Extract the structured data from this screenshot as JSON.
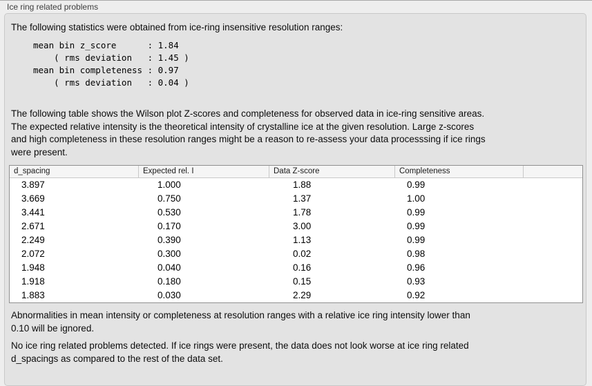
{
  "section": {
    "title": "Ice ring related problems",
    "intro": "The following statistics were obtained from ice-ring insensitive resolution ranges:",
    "stats_block": "mean bin z_score      : 1.84\n    ( rms deviation   : 1.45 )\nmean bin completeness : 0.97\n    ( rms deviation   : 0.04 )",
    "stats": {
      "mean_bin_z_score": "1.84",
      "z_score_rms_deviation": "1.45",
      "mean_bin_completeness": "0.97",
      "completeness_rms_deviation": "0.04"
    },
    "table_note": "The following table shows the Wilson plot Z-scores and completeness for observed data in ice-ring sensitive areas.\nThe expected relative intensity is the theoretical intensity of crystalline ice at the given resolution. Large z-scores\nand high completeness in these resolution ranges might be a reason to re-assess your data processsing if ice rings\nwere present.",
    "table": {
      "headers": [
        "d_spacing",
        "Expected rel. I",
        "Data Z-score",
        "Completeness",
        ""
      ],
      "rows": [
        [
          "3.897",
          "1.000",
          "1.88",
          "0.99"
        ],
        [
          "3.669",
          "0.750",
          "1.37",
          "1.00"
        ],
        [
          "3.441",
          "0.530",
          "1.78",
          "0.99"
        ],
        [
          "2.671",
          "0.170",
          "3.00",
          "0.99"
        ],
        [
          "2.249",
          "0.390",
          "1.13",
          "0.99"
        ],
        [
          "2.072",
          "0.300",
          "0.02",
          "0.98"
        ],
        [
          "1.948",
          "0.040",
          "0.16",
          "0.96"
        ],
        [
          "1.918",
          "0.180",
          "0.15",
          "0.93"
        ],
        [
          "1.883",
          "0.030",
          "2.29",
          "0.92"
        ]
      ]
    },
    "ignore_note": "Abnormalities in mean intensity or completeness at resolution ranges with a relative ice ring intensity lower than\n0.10 will be ignored.",
    "conclusion": "No ice ring related problems detected. If ice rings were present, the data does not look worse at ice ring related\nd_spacings as compared to the rest of the data set.",
    "colors": {
      "page_background": "#eeeeee",
      "box_background": "#e3e3e3",
      "box_border": "#c8c8c8",
      "table_border": "#8f8f8f",
      "table_header_background": "#f5f5f5"
    }
  }
}
